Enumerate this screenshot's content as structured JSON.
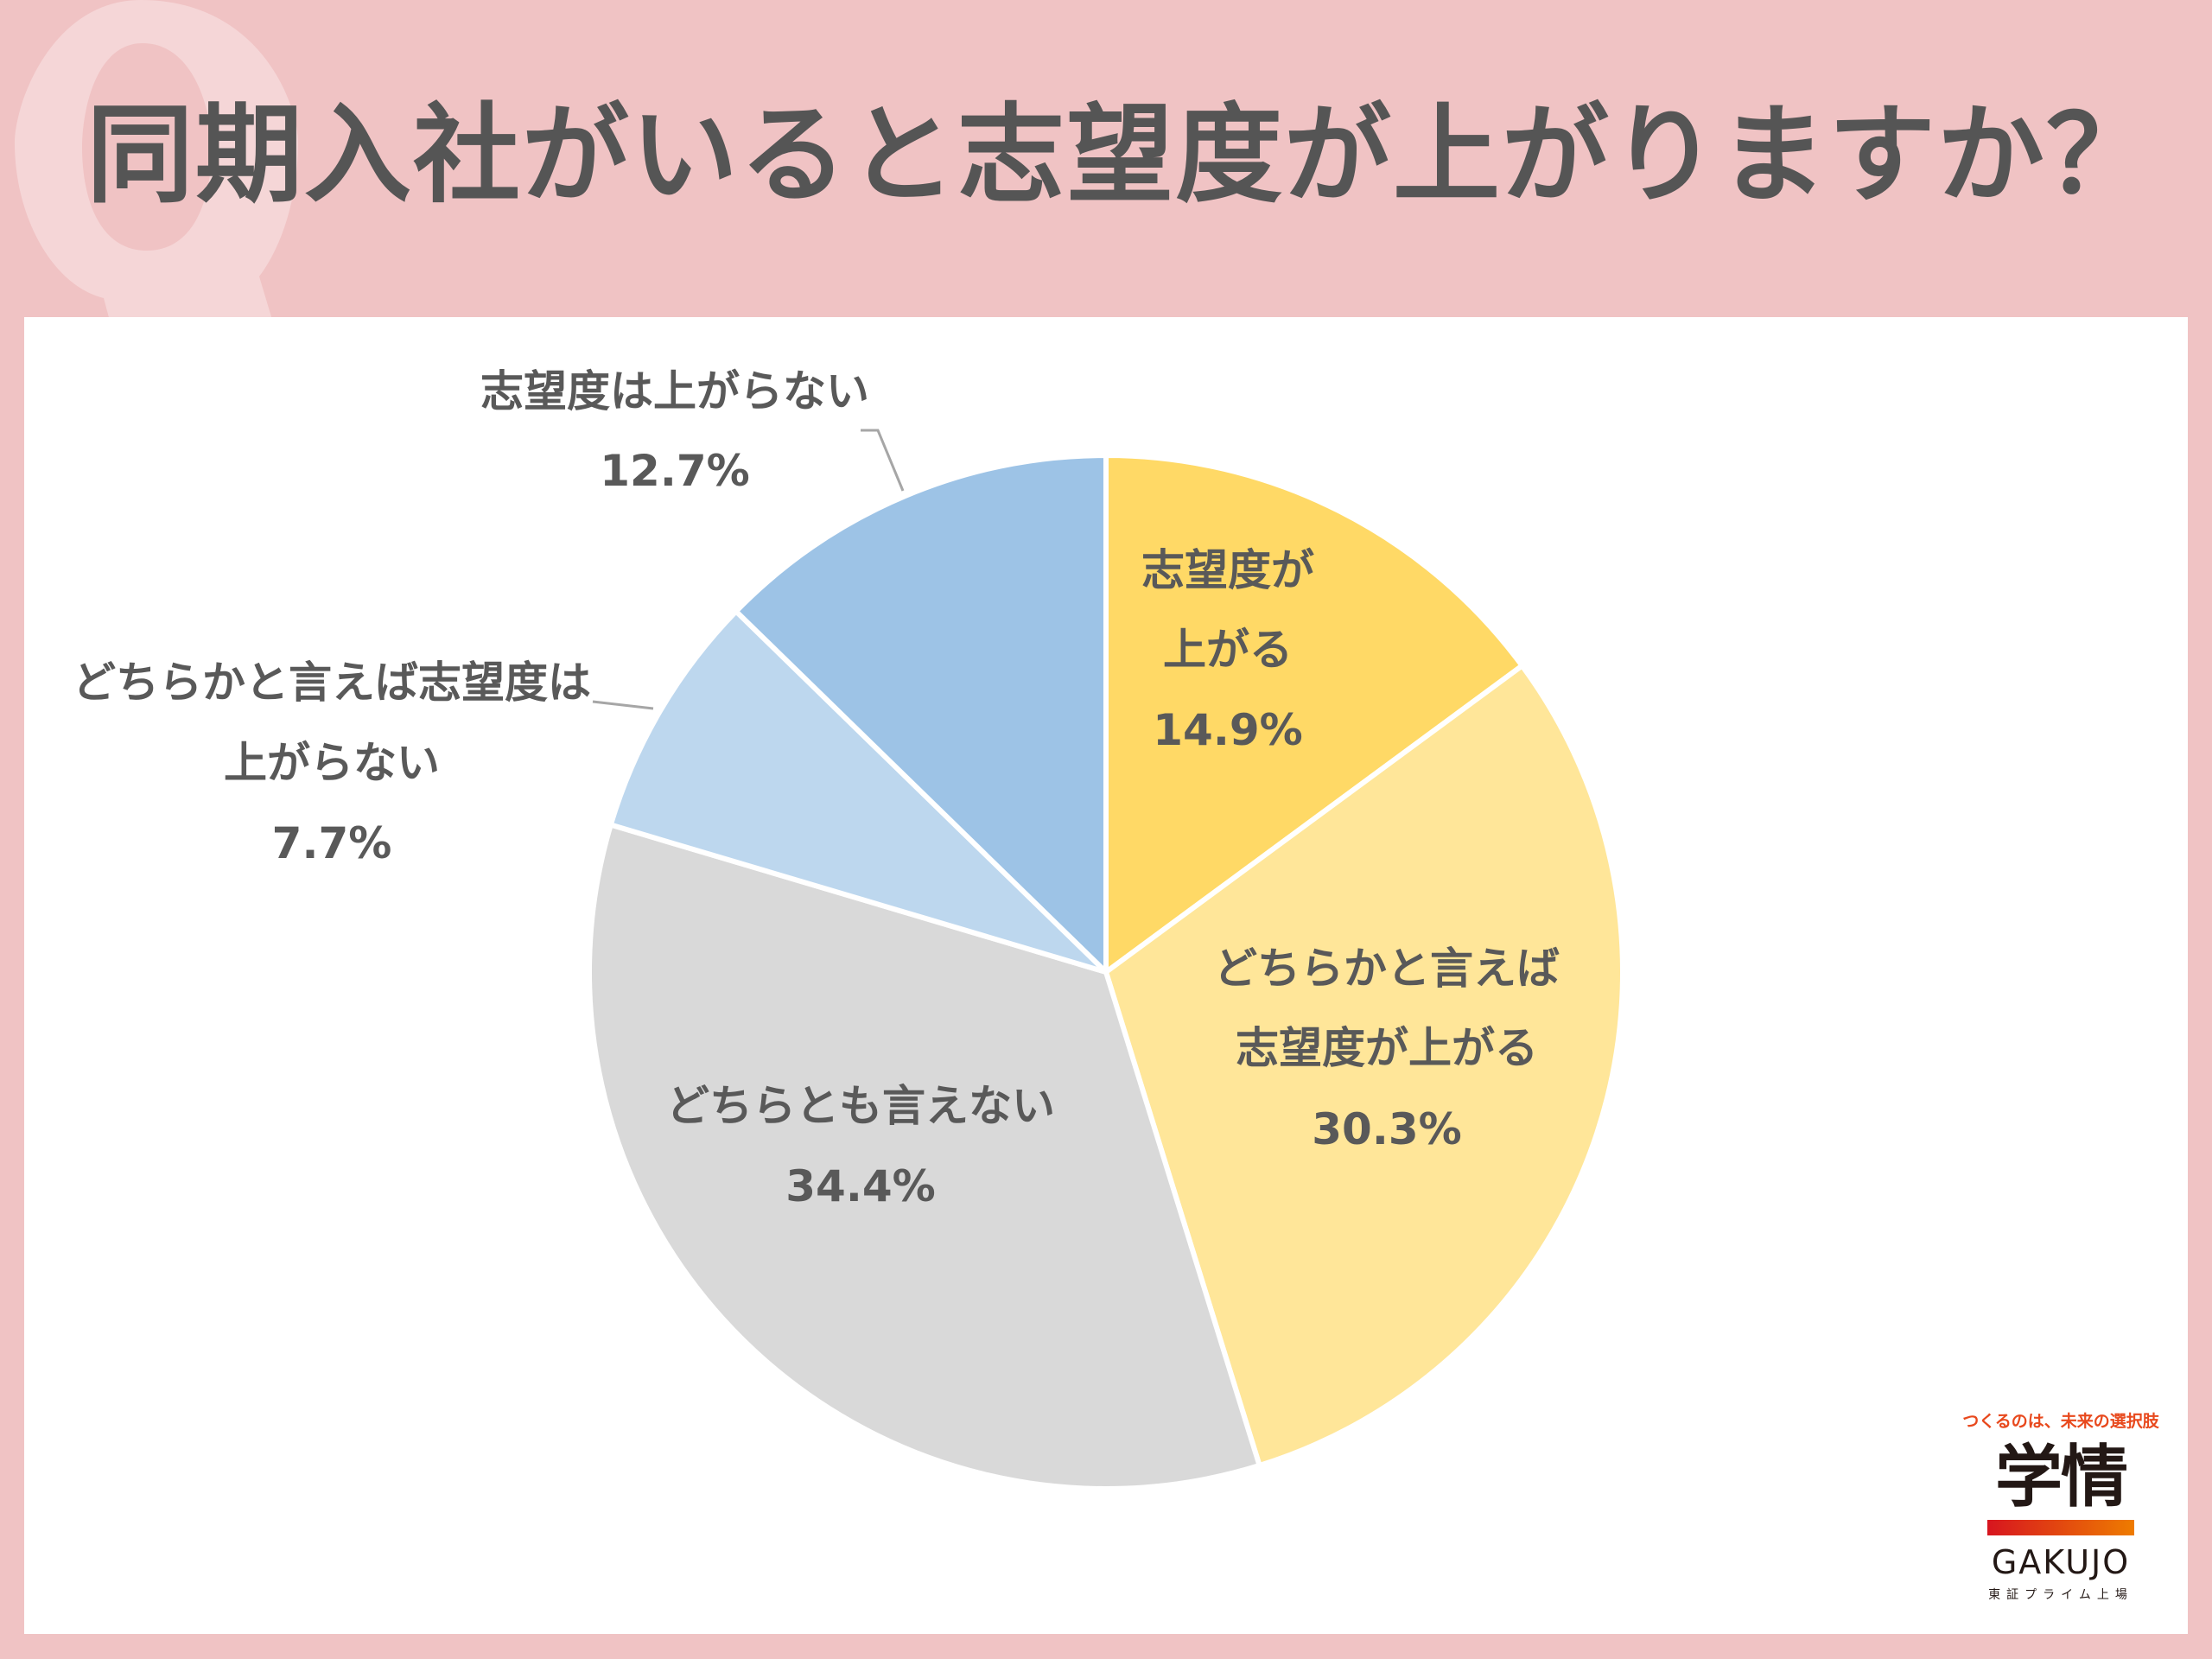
{
  "header": {
    "title": "同期入社がいると志望度が上がりますか？",
    "watermark": "Q"
  },
  "chart_data": {
    "type": "pie",
    "title": "同期入社がいると志望度が上がりますか？",
    "start": "top",
    "direction": "clockwise",
    "slices": [
      {
        "name": "志望度が上がる",
        "label_lines": [
          "志望度が",
          "上がる"
        ],
        "value": 14.9,
        "value_label": "14.9%",
        "color": "#FFD966"
      },
      {
        "name": "どちらかと言えば志望度が上がる",
        "label_lines": [
          "どちらかと言えば",
          "志望度が上がる"
        ],
        "value": 30.3,
        "value_label": "30.3%",
        "color": "#FFE699"
      },
      {
        "name": "どちらとも言えない",
        "label_lines": [
          "どちらとも言えない"
        ],
        "value": 34.4,
        "value_label": "34.4%",
        "color": "#D9D9D9"
      },
      {
        "name": "どちらかと言えば志望度は上がらない",
        "label_lines": [
          "どちらかと言えば志望度は",
          "上がらない"
        ],
        "value": 7.7,
        "value_label": "7.7%",
        "color": "#BDD7EE"
      },
      {
        "name": "志望度は上がらない",
        "label_lines": [
          "志望度は上がらない"
        ],
        "value": 12.7,
        "value_label": "12.7%",
        "color": "#9DC3E6"
      }
    ]
  },
  "logo": {
    "tagline": "つくるのは、未来の選択肢",
    "name_ja": "学情",
    "name_en": "GAKUJO",
    "listing": "東証プライム上場"
  }
}
